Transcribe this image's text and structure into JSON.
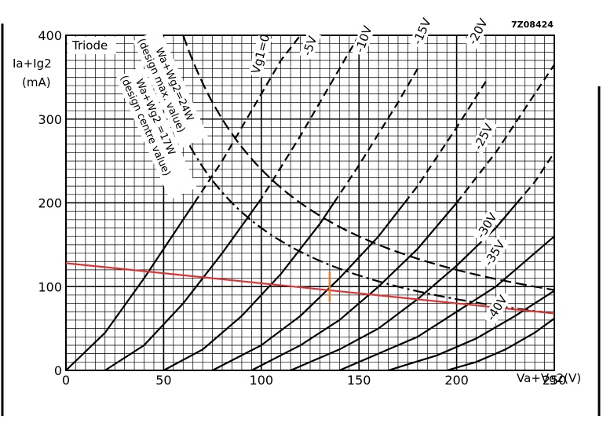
{
  "chart_data": {
    "type": "line",
    "figure_code": "7Z08424",
    "panel_label": "Triode",
    "ylabel_lines": [
      "Ia+Ig2",
      "(mA)"
    ],
    "xlabel": "Va+Vg2(V)",
    "xlim": [
      0,
      250
    ],
    "ylim": [
      0,
      400
    ],
    "x_ticks": [
      0,
      50,
      100,
      150,
      200,
      250
    ],
    "y_ticks": [
      0,
      100,
      200,
      300,
      400
    ],
    "grid": true,
    "colors": {
      "grid": "#000000",
      "curves": "#000000",
      "load_line": "#dd3333",
      "marker": "#e87b2a"
    },
    "series": [
      {
        "name": "Vg1=0",
        "style": "solid-then-dashed",
        "x": [
          0,
          20,
          40,
          60,
          80,
          100,
          110,
          120
        ],
        "y": [
          0,
          45,
          110,
          180,
          250,
          330,
          370,
          410
        ]
      },
      {
        "name": "-5V",
        "style": "solid-then-dashed",
        "x": [
          20,
          40,
          60,
          80,
          100,
          120,
          140,
          150
        ],
        "y": [
          0,
          30,
          80,
          140,
          205,
          280,
          360,
          400
        ]
      },
      {
        "name": "-10V",
        "style": "solid-then-dashed",
        "x": [
          50,
          70,
          90,
          110,
          130,
          150,
          170,
          180
        ],
        "y": [
          0,
          25,
          65,
          115,
          175,
          245,
          320,
          360
        ]
      },
      {
        "name": "-15V",
        "style": "solid-then-dashed",
        "x": [
          75,
          100,
          120,
          140,
          160,
          180,
          200,
          215
        ],
        "y": [
          0,
          30,
          65,
          110,
          160,
          220,
          290,
          345
        ]
      },
      {
        "name": "-20V",
        "style": "solid-then-dashed",
        "x": [
          95,
          120,
          140,
          160,
          180,
          200,
          220,
          240,
          250
        ],
        "y": [
          0,
          30,
          60,
          100,
          145,
          200,
          260,
          330,
          365
        ]
      },
      {
        "name": "-25V",
        "style": "solid-then-dashed",
        "x": [
          115,
          140,
          160,
          180,
          200,
          220,
          240,
          250
        ],
        "y": [
          0,
          25,
          50,
          85,
          125,
          170,
          225,
          260
        ]
      },
      {
        "name": "-30V",
        "style": "solid-then-dashed",
        "x": [
          140,
          160,
          180,
          200,
          220,
          240,
          250
        ],
        "y": [
          0,
          20,
          40,
          70,
          100,
          140,
          160
        ]
      },
      {
        "name": "-35V",
        "style": "solid-then-dashed",
        "x": [
          165,
          190,
          210,
          230,
          250
        ],
        "y": [
          0,
          18,
          38,
          65,
          95
        ]
      },
      {
        "name": "-40V",
        "style": "solid",
        "x": [
          195,
          210,
          225,
          240,
          250
        ],
        "y": [
          0,
          10,
          25,
          45,
          62
        ]
      }
    ],
    "curve_labels": [
      "Vg1=0",
      "-5V",
      "-10V",
      "-15V",
      "-20V",
      "-25V",
      "-30V",
      "-35V",
      "-40V"
    ],
    "dissipation_curves": [
      {
        "name": "Wa+Wg2=24W (design max. value)",
        "label_lines": [
          "Wa+Wg2=24W",
          "(design max. value)"
        ],
        "watts": 24
      },
      {
        "name": "Wa+Wg2=17W (design centre value)",
        "label_lines": [
          "Wa+Wg2 =17W",
          "(design centre value)"
        ],
        "watts": 17
      }
    ],
    "load_line": {
      "x": [
        0,
        250
      ],
      "y": [
        128,
        68
      ]
    },
    "marker": {
      "x": 135,
      "y": [
        82,
        118
      ]
    }
  }
}
